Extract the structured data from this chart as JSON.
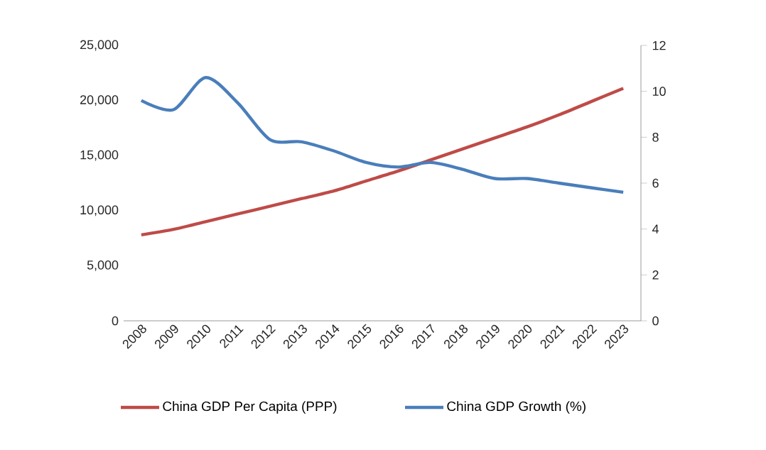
{
  "chart_data": {
    "type": "line",
    "categories": [
      "2008",
      "2009",
      "2010",
      "2011",
      "2012",
      "2013",
      "2014",
      "2015",
      "2016",
      "2017",
      "2018",
      "2019",
      "2020",
      "2021",
      "2022",
      "2023"
    ],
    "series": [
      {
        "name": "China GDP Per Capita (PPP)",
        "color": "#be4b48",
        "values": [
          7800,
          8300,
          9000,
          9700,
          10400,
          11100,
          11800,
          12700,
          13600,
          14600,
          15600,
          16600,
          17600,
          18700,
          19900,
          21100
        ]
      },
      {
        "name": "China GDP Growth (%)",
        "color": "#4a7ebb",
        "axis": "y2",
        "values": [
          9.6,
          9.2,
          10.6,
          9.5,
          7.9,
          7.8,
          7.4,
          6.9,
          6.7,
          6.9,
          6.6,
          6.2,
          6.2,
          6.0,
          5.8,
          5.6
        ]
      }
    ],
    "ylim": [
      0,
      25000
    ],
    "yticks": [
      {
        "value": 0,
        "label": "0"
      },
      {
        "value": 5000,
        "label": "5,000"
      },
      {
        "value": 10000,
        "label": "10,000"
      },
      {
        "value": 15000,
        "label": "15,000"
      },
      {
        "value": 20000,
        "label": "20,000"
      },
      {
        "value": 25000,
        "label": "25,000"
      }
    ],
    "y2lim": [
      0,
      12
    ],
    "y2ticks": [
      0,
      2,
      4,
      6,
      8,
      10,
      12
    ],
    "legend": "bottom",
    "grid": false,
    "marker": "none",
    "line_style": "solid"
  }
}
